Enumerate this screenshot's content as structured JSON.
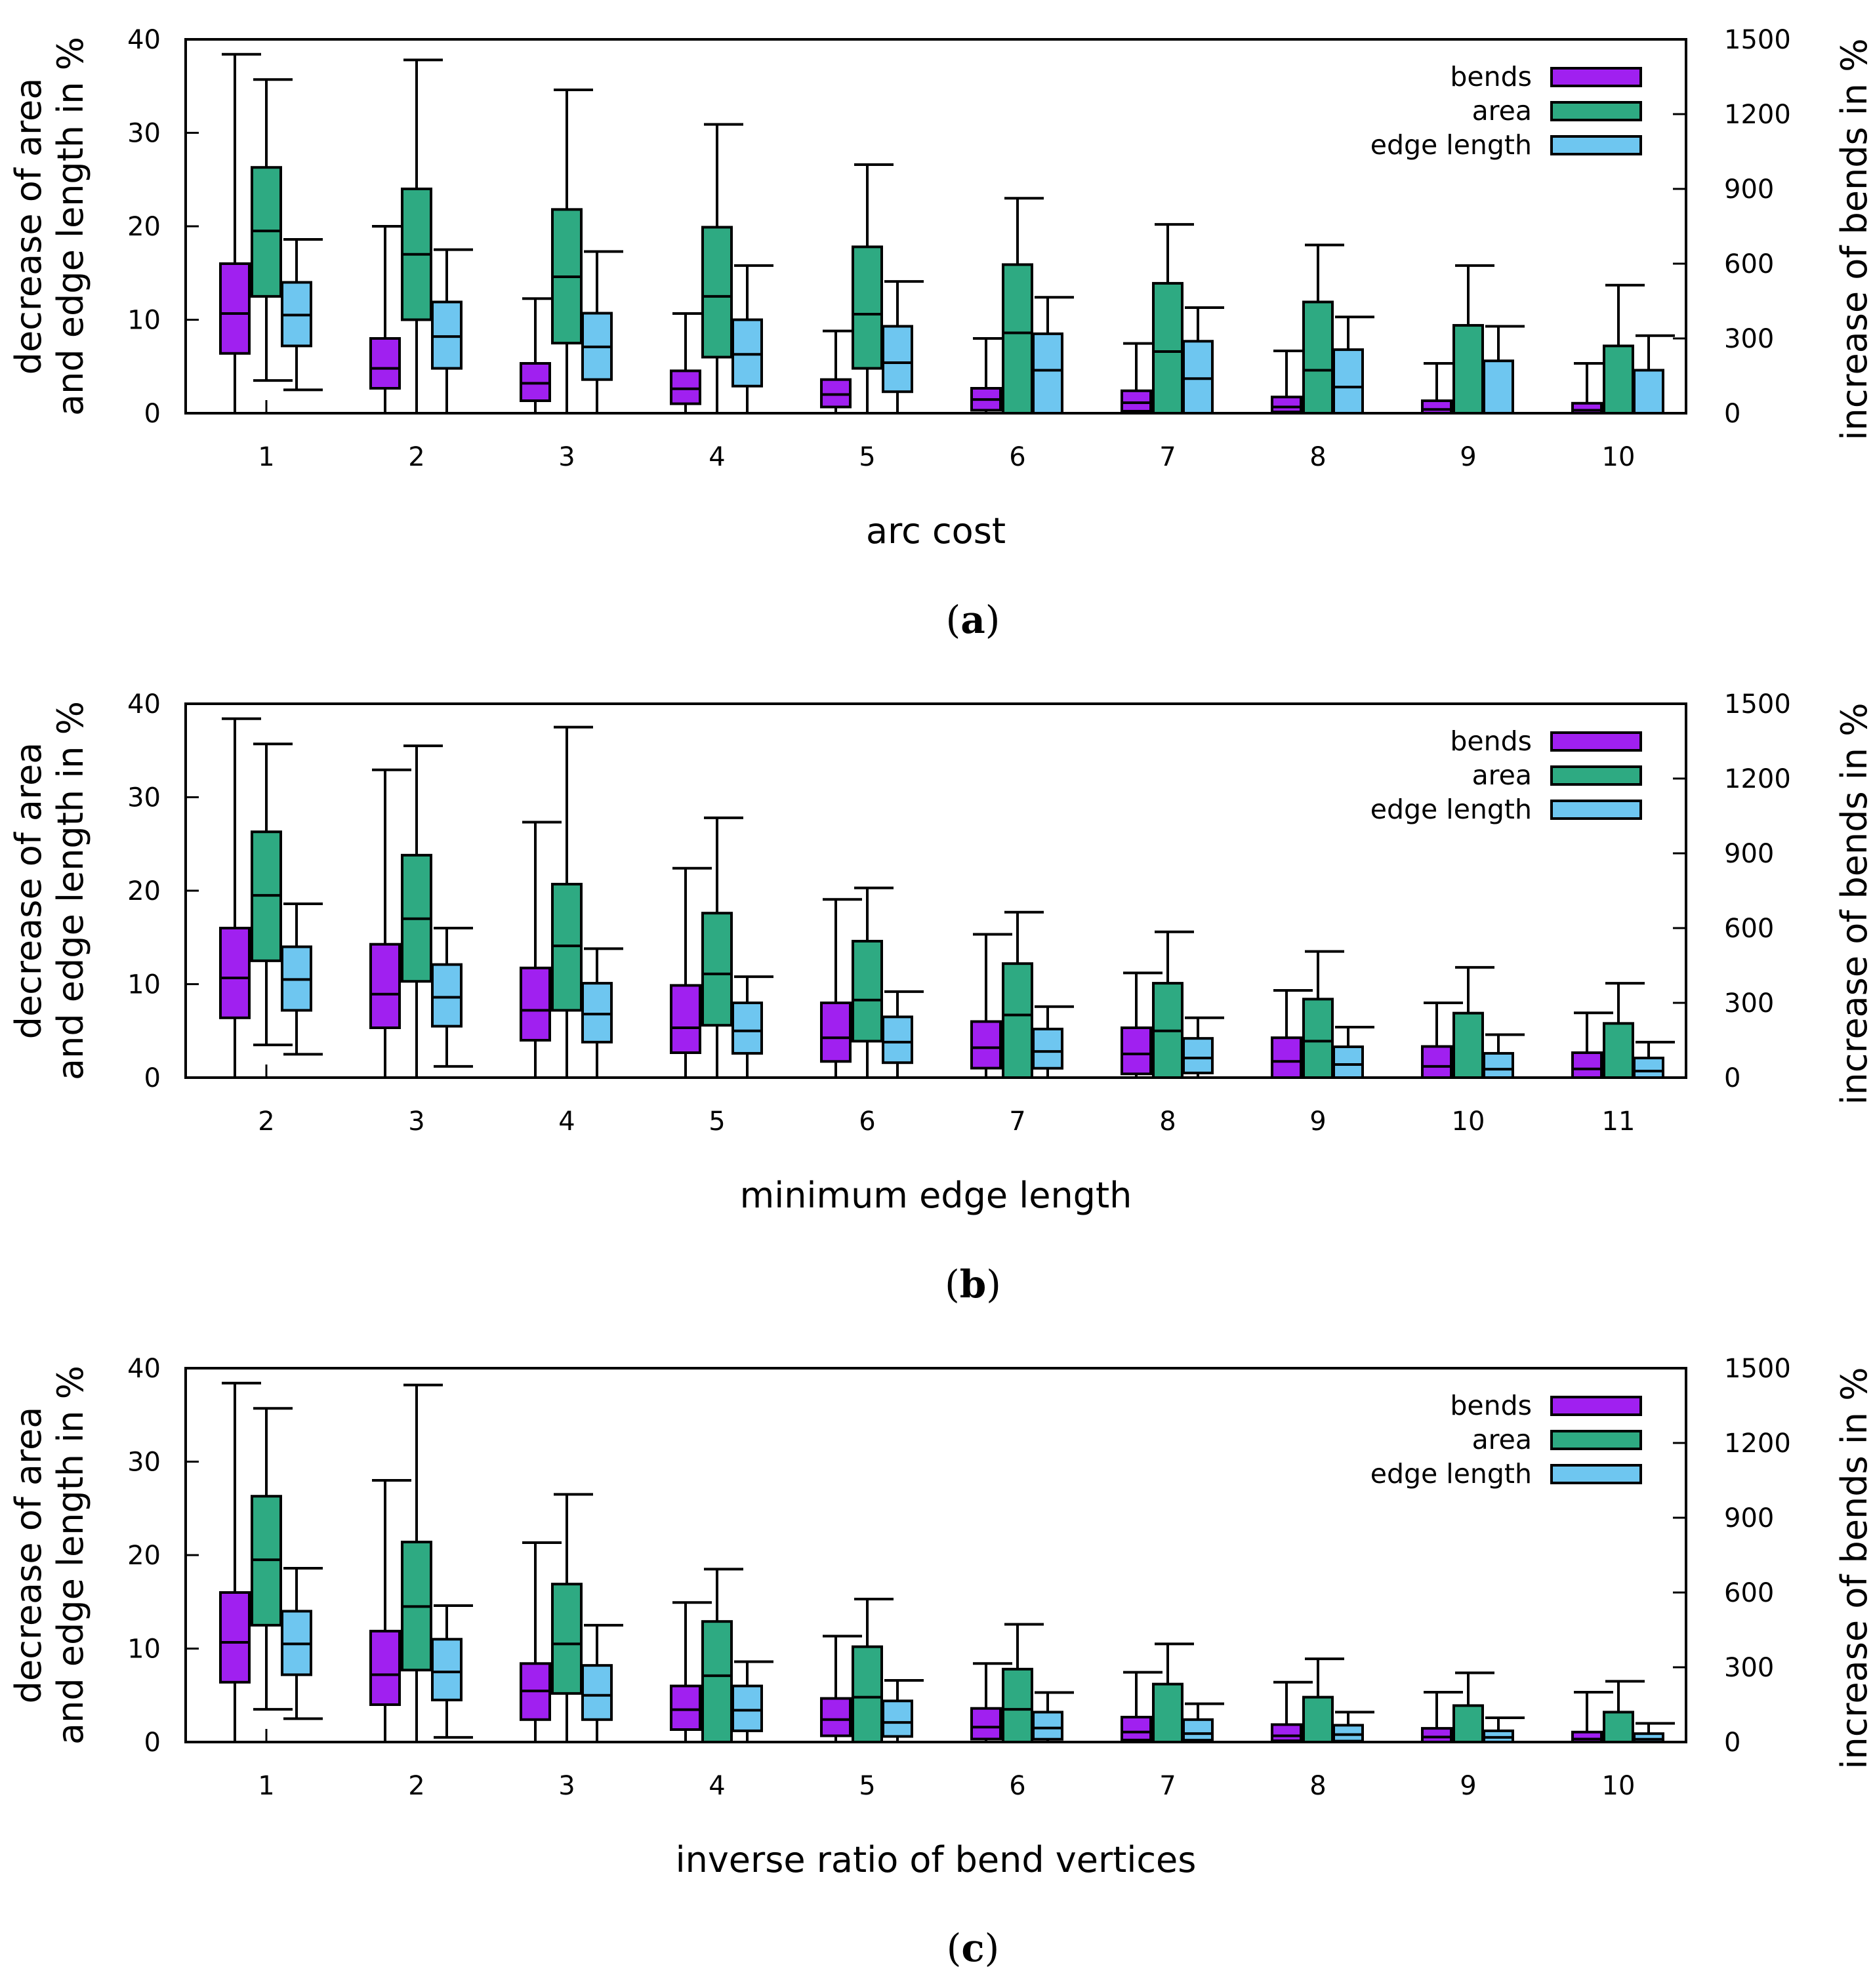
{
  "colors": {
    "bends": "#a020f0",
    "area": "#2eaa82",
    "edge_length": "#6ec6f0",
    "axis": "#000000"
  },
  "chart_data": [
    {
      "type": "boxplot",
      "caption": "a",
      "xlabel": "arc cost",
      "ylabel_left": [
        "decrease of area",
        "and edge length in %"
      ],
      "ylabel_right": "increase of bends in %",
      "left_ylim": [
        0,
        40
      ],
      "left_ticks": [
        "0",
        "10",
        "20",
        "30",
        "40"
      ],
      "right_ylim": [
        0,
        1500
      ],
      "right_ticks": [
        "0",
        "300",
        "600",
        "900",
        "1200",
        "1500"
      ],
      "legend": [
        "bends",
        "area",
        "edge length"
      ],
      "legend_position": "top-right",
      "categories": [
        "1",
        "2",
        "3",
        "4",
        "5",
        "6",
        "7",
        "8",
        "9",
        "10"
      ],
      "series": [
        {
          "name": "bends",
          "axis": "right",
          "boxes": [
            {
              "min": 0,
              "q1": 240,
              "median": 400,
              "q3": 600,
              "max": 1440
            },
            {
              "min": 0,
              "q1": 100,
              "median": 180,
              "q3": 300,
              "max": 750
            },
            {
              "min": 0,
              "q1": 50,
              "median": 120,
              "q3": 200,
              "max": 460
            },
            {
              "min": 0,
              "q1": 38,
              "median": 98,
              "q3": 170,
              "max": 400
            },
            {
              "min": 0,
              "q1": 25,
              "median": 75,
              "q3": 135,
              "max": 330
            },
            {
              "min": 0,
              "q1": 12,
              "median": 55,
              "q3": 100,
              "max": 300
            },
            {
              "min": 0,
              "q1": 8,
              "median": 42,
              "q3": 90,
              "max": 280
            },
            {
              "min": 0,
              "q1": 5,
              "median": 25,
              "q3": 65,
              "max": 250
            },
            {
              "min": 0,
              "q1": 0,
              "median": 15,
              "q3": 50,
              "max": 200
            },
            {
              "min": 0,
              "q1": 0,
              "median": 12,
              "q3": 40,
              "max": 200
            }
          ]
        },
        {
          "name": "area",
          "axis": "left",
          "boxes": [
            {
              "min": 3.5,
              "q1": 12.5,
              "median": 19.5,
              "q3": 26.3,
              "max": 35.7
            },
            {
              "min": 0,
              "q1": 10,
              "median": 17,
              "q3": 24,
              "max": 37.8
            },
            {
              "min": 0,
              "q1": 7.5,
              "median": 14.6,
              "q3": 21.8,
              "max": 34.6
            },
            {
              "min": 0,
              "q1": 6,
              "median": 12.5,
              "q3": 19.9,
              "max": 30.9
            },
            {
              "min": 0,
              "q1": 4.8,
              "median": 10.6,
              "q3": 17.8,
              "max": 26.6
            },
            {
              "min": 0,
              "q1": 0,
              "median": 8.6,
              "q3": 15.9,
              "max": 23
            },
            {
              "min": 0,
              "q1": 0,
              "median": 6.6,
              "q3": 13.9,
              "max": 20.2
            },
            {
              "min": 0,
              "q1": 0,
              "median": 4.6,
              "q3": 11.9,
              "max": 18
            },
            {
              "min": 0,
              "q1": 0,
              "median": 0,
              "q3": 9.4,
              "max": 15.8
            },
            {
              "min": 0,
              "q1": 0,
              "median": 0,
              "q3": 7.2,
              "max": 13.7
            }
          ]
        },
        {
          "name": "edge length",
          "axis": "left",
          "boxes": [
            {
              "min": 2.5,
              "q1": 7.2,
              "median": 10.5,
              "q3": 14,
              "max": 18.6
            },
            {
              "min": 0,
              "q1": 4.8,
              "median": 8.2,
              "q3": 11.9,
              "max": 17.5
            },
            {
              "min": 0,
              "q1": 3.6,
              "median": 7.1,
              "q3": 10.7,
              "max": 17.3
            },
            {
              "min": 0,
              "q1": 2.9,
              "median": 6.3,
              "q3": 10,
              "max": 15.8
            },
            {
              "min": 0,
              "q1": 2.3,
              "median": 5.4,
              "q3": 9.3,
              "max": 14.1
            },
            {
              "min": 0,
              "q1": 0,
              "median": 4.6,
              "q3": 8.5,
              "max": 12.4
            },
            {
              "min": 0,
              "q1": 0,
              "median": 3.7,
              "q3": 7.7,
              "max": 11.3
            },
            {
              "min": 0,
              "q1": 0,
              "median": 2.8,
              "q3": 6.8,
              "max": 10.3
            },
            {
              "min": 0,
              "q1": 0,
              "median": 0,
              "q3": 5.6,
              "max": 9.3
            },
            {
              "min": 0,
              "q1": 0,
              "median": 0,
              "q3": 4.6,
              "max": 8.3
            }
          ]
        }
      ]
    },
    {
      "type": "boxplot",
      "caption": "b",
      "xlabel": "minimum edge length",
      "ylabel_left": [
        "decrease of area",
        "and edge length in %"
      ],
      "ylabel_right": "increase of bends in %",
      "left_ylim": [
        0,
        40
      ],
      "left_ticks": [
        "0",
        "10",
        "20",
        "30",
        "40"
      ],
      "right_ylim": [
        0,
        1500
      ],
      "right_ticks": [
        "0",
        "300",
        "600",
        "900",
        "1200",
        "1500"
      ],
      "legend": [
        "bends",
        "area",
        "edge length"
      ],
      "legend_position": "top-right",
      "categories": [
        "2",
        "3",
        "4",
        "5",
        "6",
        "7",
        "8",
        "9",
        "10",
        "11"
      ],
      "series": [
        {
          "name": "bends",
          "axis": "right",
          "boxes": [
            {
              "min": 0,
              "q1": 240,
              "median": 400,
              "q3": 600,
              "max": 1440
            },
            {
              "min": 0,
              "q1": 200,
              "median": 335,
              "q3": 535,
              "max": 1235
            },
            {
              "min": 0,
              "q1": 150,
              "median": 270,
              "q3": 440,
              "max": 1025
            },
            {
              "min": 0,
              "q1": 100,
              "median": 200,
              "q3": 370,
              "max": 840
            },
            {
              "min": 0,
              "q1": 65,
              "median": 160,
              "q3": 300,
              "max": 715
            },
            {
              "min": 0,
              "q1": 38,
              "median": 120,
              "q3": 225,
              "max": 575
            },
            {
              "min": 0,
              "q1": 15,
              "median": 95,
              "q3": 200,
              "max": 420
            },
            {
              "min": 0,
              "q1": 0,
              "median": 65,
              "q3": 160,
              "max": 350
            },
            {
              "min": 0,
              "q1": 0,
              "median": 45,
              "q3": 125,
              "max": 300
            },
            {
              "min": 0,
              "q1": 0,
              "median": 35,
              "q3": 100,
              "max": 260
            }
          ]
        },
        {
          "name": "area",
          "axis": "left",
          "boxes": [
            {
              "min": 3.5,
              "q1": 12.5,
              "median": 19.5,
              "q3": 26.3,
              "max": 35.7
            },
            {
              "min": 0,
              "q1": 10.3,
              "median": 17,
              "q3": 23.8,
              "max": 35.5
            },
            {
              "min": 0,
              "q1": 7.2,
              "median": 14.1,
              "q3": 20.7,
              "max": 37.5
            },
            {
              "min": 0,
              "q1": 5.6,
              "median": 11.1,
              "q3": 17.6,
              "max": 27.8
            },
            {
              "min": 0,
              "q1": 3.9,
              "median": 8.3,
              "q3": 14.6,
              "max": 20.3
            },
            {
              "min": 0,
              "q1": 0,
              "median": 6.7,
              "q3": 12.2,
              "max": 17.7
            },
            {
              "min": 0,
              "q1": 0,
              "median": 5,
              "q3": 10.1,
              "max": 15.6
            },
            {
              "min": 0,
              "q1": 0,
              "median": 3.9,
              "q3": 8.4,
              "max": 13.5
            },
            {
              "min": 0,
              "q1": 0,
              "median": 0,
              "q3": 6.9,
              "max": 11.8
            },
            {
              "min": 0,
              "q1": 0,
              "median": 0,
              "q3": 5.8,
              "max": 10.1
            }
          ]
        },
        {
          "name": "edge length",
          "axis": "left",
          "boxes": [
            {
              "min": 2.5,
              "q1": 7.2,
              "median": 10.5,
              "q3": 14,
              "max": 18.6
            },
            {
              "min": 1.2,
              "q1": 5.5,
              "median": 8.6,
              "q3": 12.1,
              "max": 16
            },
            {
              "min": 0,
              "q1": 3.8,
              "median": 6.8,
              "q3": 10.1,
              "max": 13.8
            },
            {
              "min": 0,
              "q1": 2.6,
              "median": 5,
              "q3": 8,
              "max": 10.8
            },
            {
              "min": 0,
              "q1": 1.6,
              "median": 3.8,
              "q3": 6.5,
              "max": 9.2
            },
            {
              "min": 0,
              "q1": 1,
              "median": 2.8,
              "q3": 5.2,
              "max": 7.6
            },
            {
              "min": 0,
              "q1": 0.5,
              "median": 2.1,
              "q3": 4.2,
              "max": 6.4
            },
            {
              "min": 0,
              "q1": 0,
              "median": 1.4,
              "q3": 3.3,
              "max": 5.4
            },
            {
              "min": 0,
              "q1": 0,
              "median": 0.9,
              "q3": 2.6,
              "max": 4.6
            },
            {
              "min": 0,
              "q1": 0,
              "median": 0.7,
              "q3": 2.1,
              "max": 3.8
            }
          ]
        }
      ]
    },
    {
      "type": "boxplot",
      "caption": "c",
      "xlabel": "inverse ratio of bend vertices",
      "ylabel_left": [
        "decrease of area",
        "and edge length in %"
      ],
      "ylabel_right": "increase of bends in %",
      "left_ylim": [
        0,
        40
      ],
      "left_ticks": [
        "0",
        "10",
        "20",
        "30",
        "40"
      ],
      "right_ylim": [
        0,
        1500
      ],
      "right_ticks": [
        "0",
        "300",
        "600",
        "900",
        "1200",
        "1500"
      ],
      "legend": [
        "bends",
        "area",
        "edge length"
      ],
      "legend_position": "top-right",
      "categories": [
        "1",
        "2",
        "3",
        "4",
        "5",
        "6",
        "7",
        "8",
        "9",
        "10"
      ],
      "series": [
        {
          "name": "bends",
          "axis": "right",
          "boxes": [
            {
              "min": 0,
              "q1": 240,
              "median": 400,
              "q3": 600,
              "max": 1440
            },
            {
              "min": 0,
              "q1": 150,
              "median": 270,
              "q3": 445,
              "max": 1050
            },
            {
              "min": 0,
              "q1": 90,
              "median": 205,
              "q3": 315,
              "max": 800
            },
            {
              "min": 0,
              "q1": 50,
              "median": 130,
              "q3": 225,
              "max": 560
            },
            {
              "min": 0,
              "q1": 25,
              "median": 90,
              "q3": 175,
              "max": 425
            },
            {
              "min": 0,
              "q1": 12,
              "median": 60,
              "q3": 135,
              "max": 315
            },
            {
              "min": 0,
              "q1": 8,
              "median": 40,
              "q3": 100,
              "max": 280
            },
            {
              "min": 0,
              "q1": 5,
              "median": 25,
              "q3": 70,
              "max": 240
            },
            {
              "min": 0,
              "q1": 0,
              "median": 20,
              "q3": 55,
              "max": 200
            },
            {
              "min": 0,
              "q1": 0,
              "median": 12,
              "q3": 40,
              "max": 200
            }
          ]
        },
        {
          "name": "area",
          "axis": "left",
          "boxes": [
            {
              "min": 3.5,
              "q1": 12.5,
              "median": 19.5,
              "q3": 26.3,
              "max": 35.7
            },
            {
              "min": 0,
              "q1": 7.7,
              "median": 14.5,
              "q3": 21.4,
              "max": 38.2
            },
            {
              "min": 0,
              "q1": 5.2,
              "median": 10.5,
              "q3": 16.9,
              "max": 26.5
            },
            {
              "min": 0,
              "q1": 0,
              "median": 7.1,
              "q3": 12.9,
              "max": 18.5
            },
            {
              "min": 0,
              "q1": 0,
              "median": 4.8,
              "q3": 10.2,
              "max": 15.3
            },
            {
              "min": 0,
              "q1": 0,
              "median": 3.5,
              "q3": 7.8,
              "max": 12.6
            },
            {
              "min": 0,
              "q1": 0,
              "median": 0,
              "q3": 6.2,
              "max": 10.5
            },
            {
              "min": 0,
              "q1": 0,
              "median": 0,
              "q3": 4.8,
              "max": 8.9
            },
            {
              "min": 0,
              "q1": 0,
              "median": 0,
              "q3": 3.9,
              "max": 7.4
            },
            {
              "min": 0,
              "q1": 0,
              "median": 0,
              "q3": 3.2,
              "max": 6.5
            }
          ]
        },
        {
          "name": "edge length",
          "axis": "left",
          "boxes": [
            {
              "min": 2.5,
              "q1": 7.2,
              "median": 10.5,
              "q3": 14,
              "max": 18.6
            },
            {
              "min": 0.5,
              "q1": 4.5,
              "median": 7.5,
              "q3": 11,
              "max": 14.6
            },
            {
              "min": 0,
              "q1": 2.4,
              "median": 5,
              "q3": 8.2,
              "max": 12.5
            },
            {
              "min": 0,
              "q1": 1.2,
              "median": 3.4,
              "q3": 6,
              "max": 8.6
            },
            {
              "min": 0,
              "q1": 0.6,
              "median": 2.1,
              "q3": 4.4,
              "max": 6.6
            },
            {
              "min": 0,
              "q1": 0.3,
              "median": 1.5,
              "q3": 3.2,
              "max": 5.3
            },
            {
              "min": 0,
              "q1": 0.2,
              "median": 0.9,
              "q3": 2.4,
              "max": 4.1
            },
            {
              "min": 0,
              "q1": 0.1,
              "median": 0.8,
              "q3": 1.8,
              "max": 3.2
            },
            {
              "min": 0,
              "q1": 0,
              "median": 0.5,
              "q3": 1.2,
              "max": 2.6
            },
            {
              "min": 0,
              "q1": 0,
              "median": 0.3,
              "q3": 0.9,
              "max": 2
            }
          ]
        }
      ]
    }
  ]
}
